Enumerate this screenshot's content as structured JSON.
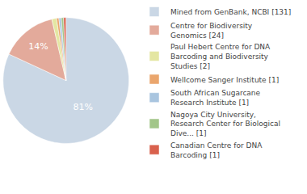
{
  "chart_data": {
    "type": "pie",
    "categories": [
      "Mined from GenBank, NCBI [131]",
      "Centre for Biodiversity\nGenomics [24]",
      "Paul Hebert Centre for DNA\nBarcoding and Biodiversity\nStudies [2]",
      "Wellcome Sanger Institute [1]",
      "South African Sugarcane\nResearch Institute [1]",
      "Nagoya City University,\nResearch Center for Biological\nDive... [1]",
      "Canadian Centre for DNA\nBarcoding [1]"
    ],
    "values": [
      81.4,
      14.4,
      1.2,
      0.6,
      0.6,
      0.6,
      0.6
    ],
    "value_labels": [
      "81%",
      "14%",
      null,
      null,
      null,
      null,
      null
    ],
    "colors": [
      "#cad7e5",
      "#e3aa9b",
      "#e4e6a2",
      "#eaa66d",
      "#a9c5df",
      "#a2c689",
      "#d9614d"
    ],
    "data_labels": true,
    "legend": "upper right"
  }
}
